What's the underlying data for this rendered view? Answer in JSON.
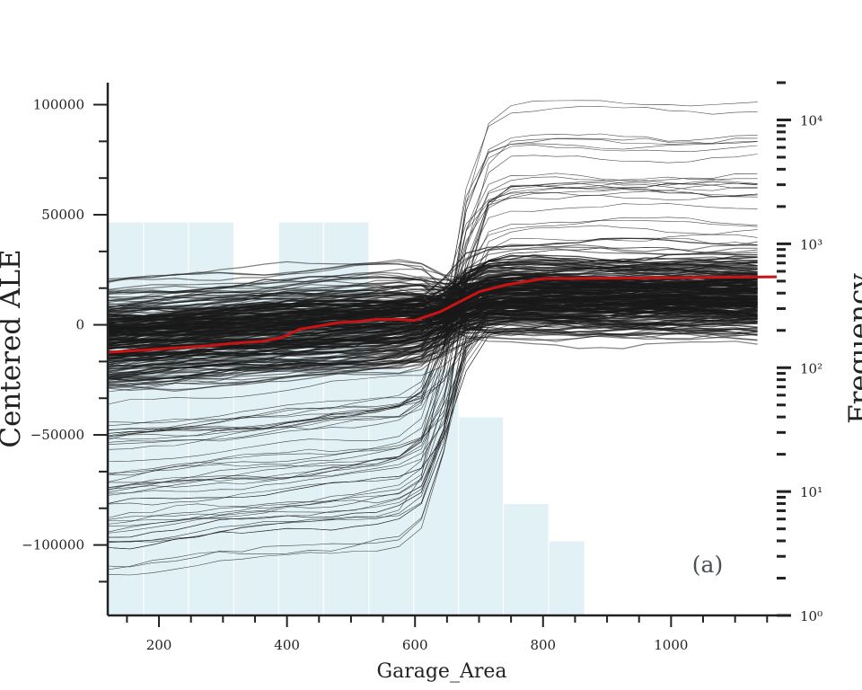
{
  "chart_data": {
    "type": "line",
    "xlabel": "Garage_Area",
    "ylabel": "Centered ALE",
    "y2label": "Frequency",
    "panel_label": "(a)",
    "xlim": [
      120,
      1165
    ],
    "ylim": [
      -132000,
      110000
    ],
    "y2lim": [
      1,
      20000
    ],
    "y2scale": "log",
    "x_ticks": [
      200,
      400,
      600,
      800,
      1000
    ],
    "x_tick_labels": [
      "200",
      "400",
      "600",
      "800",
      "1000"
    ],
    "y_ticks": [
      -100000,
      -50000,
      0,
      50000,
      100000
    ],
    "y_tick_labels": [
      "−100000",
      "−50000",
      "0",
      "50000",
      "100000"
    ],
    "y2_ticks": [
      1,
      10,
      100,
      1000,
      10000
    ],
    "y2_tick_labels": [
      "10⁰",
      "10¹",
      "10²",
      "10³",
      "10⁴"
    ],
    "colors": {
      "ale_line": "#c81414",
      "ice_lines": "#1a1a1a",
      "histogram": "#e1f1f5",
      "axes": "#222222"
    },
    "histogram": {
      "edges": [
        120,
        176,
        246,
        317,
        387,
        457,
        528,
        598,
        668,
        738,
        809,
        865
      ],
      "counts": [
        1500,
        1500,
        1500,
        500,
        1500,
        1500,
        100,
        100,
        40,
        8,
        4
      ]
    },
    "ale_line": {
      "x": [
        120,
        200,
        280,
        310,
        360,
        390,
        420,
        450,
        480,
        510,
        540,
        570,
        600,
        640,
        660,
        700,
        740,
        800,
        900,
        1000,
        1165
      ],
      "y": [
        -12500,
        -11000,
        -9500,
        -8500,
        -7500,
        -6000,
        -2000,
        -500,
        1000,
        1500,
        2500,
        2500,
        2000,
        6000,
        9000,
        15000,
        18000,
        21000,
        21200,
        21400,
        21800
      ]
    }
  }
}
